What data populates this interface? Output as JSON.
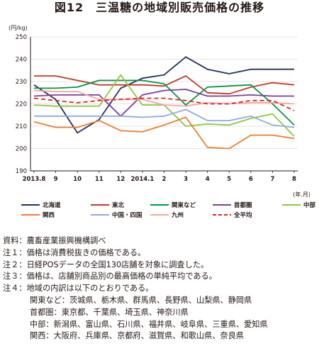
{
  "chart_data": {
    "type": "line",
    "title": "図12　三温糖の地域別販売価格の推移",
    "ylabel": "(円/kg)",
    "xlabel": "(年.月)",
    "x": [
      "2013.8",
      "9",
      "10",
      "11",
      "12",
      "2014.1",
      "2",
      "3",
      "4",
      "5",
      "6",
      "7",
      "8"
    ],
    "ylim": [
      190,
      250
    ],
    "yticks": [
      190,
      200,
      210,
      220,
      230,
      240,
      250
    ],
    "grid": "horizontal",
    "legend_position": "bottom",
    "series": [
      {
        "name": "北海道",
        "color": "#22305f",
        "dash": "solid",
        "values": [
          228.5,
          222,
          207,
          213,
          227,
          231.5,
          233,
          241,
          235.5,
          233.5,
          235.5,
          235.5,
          235.5
        ]
      },
      {
        "name": "東北",
        "color": "#c0392b",
        "dash": "solid",
        "values": [
          232.5,
          232.5,
          230.5,
          228.5,
          228.5,
          228.5,
          228,
          232.5,
          225,
          224.5,
          227.5,
          229.5,
          228.5
        ]
      },
      {
        "name": "関東など",
        "color": "#009844",
        "dash": "solid",
        "values": [
          227,
          227,
          227.5,
          230.5,
          230.5,
          230.5,
          229,
          219.5,
          227.5,
          228,
          228.5,
          220,
          210.5
        ]
      },
      {
        "name": "首都圏",
        "color": "#7b3f98",
        "dash": "solid",
        "values": [
          223.5,
          224,
          224,
          224,
          214.5,
          224,
          226,
          226.5,
          223.5,
          223.5,
          224,
          223.5,
          223.5
        ]
      },
      {
        "name": "中部",
        "color": "#8dc63f",
        "dash": "solid",
        "values": [
          219.5,
          219,
          219,
          219,
          233,
          219.5,
          219.5,
          210,
          211,
          210.5,
          213.5,
          215.5,
          205.5
        ]
      },
      {
        "name": "関西",
        "color": "#ed7d31",
        "dash": "solid",
        "values": [
          212,
          209.5,
          209.5,
          212.5,
          208,
          207.5,
          210.5,
          214,
          200.5,
          200,
          206,
          206,
          204.5
        ]
      },
      {
        "name": "中国・四国",
        "color": "#8eaadb",
        "dash": "solid",
        "values": [
          214.5,
          214.5,
          214.5,
          214.5,
          214.5,
          214,
          214.5,
          217.5,
          212.5,
          212.5,
          214.5,
          210.5,
          209.5
        ]
      },
      {
        "name": "九州",
        "color": "#f4a6a0",
        "dash": "solid",
        "values": [
          226,
          225.5,
          225.5,
          222,
          222,
          222,
          219.5,
          219,
          220.5,
          220,
          220.5,
          220.5,
          220
        ]
      },
      {
        "name": "全平均",
        "color": "#e6221b",
        "dash": "dashed",
        "values": [
          222.5,
          221.5,
          220.5,
          221.5,
          222,
          222.5,
          222.5,
          221.5,
          220,
          220,
          221.5,
          221.5,
          217
        ]
      }
    ]
  },
  "notes": [
    "資料：農畜産業振興機構調べ",
    "注１：価格は消費税抜きの価格である。",
    "注２：日経POSデータの全国130店舗を対象に調査した。",
    "注３：価格は、店舗別商品別の最高価格の単純平均である。",
    "注４：地域の内訳は以下のとおりである。"
  ],
  "region_details": [
    "関東など：茨城県、栃木県、群馬県、長野県、山梨県、静岡県",
    "首都圏：東京都、千葉県、埼玉県、神奈川県",
    "中部：新潟県、富山県、石川県、福井県、岐阜県、三重県、愛知県",
    "関西：大阪府、兵庫県、京都府、滋賀県、和歌山県、奈良県"
  ]
}
